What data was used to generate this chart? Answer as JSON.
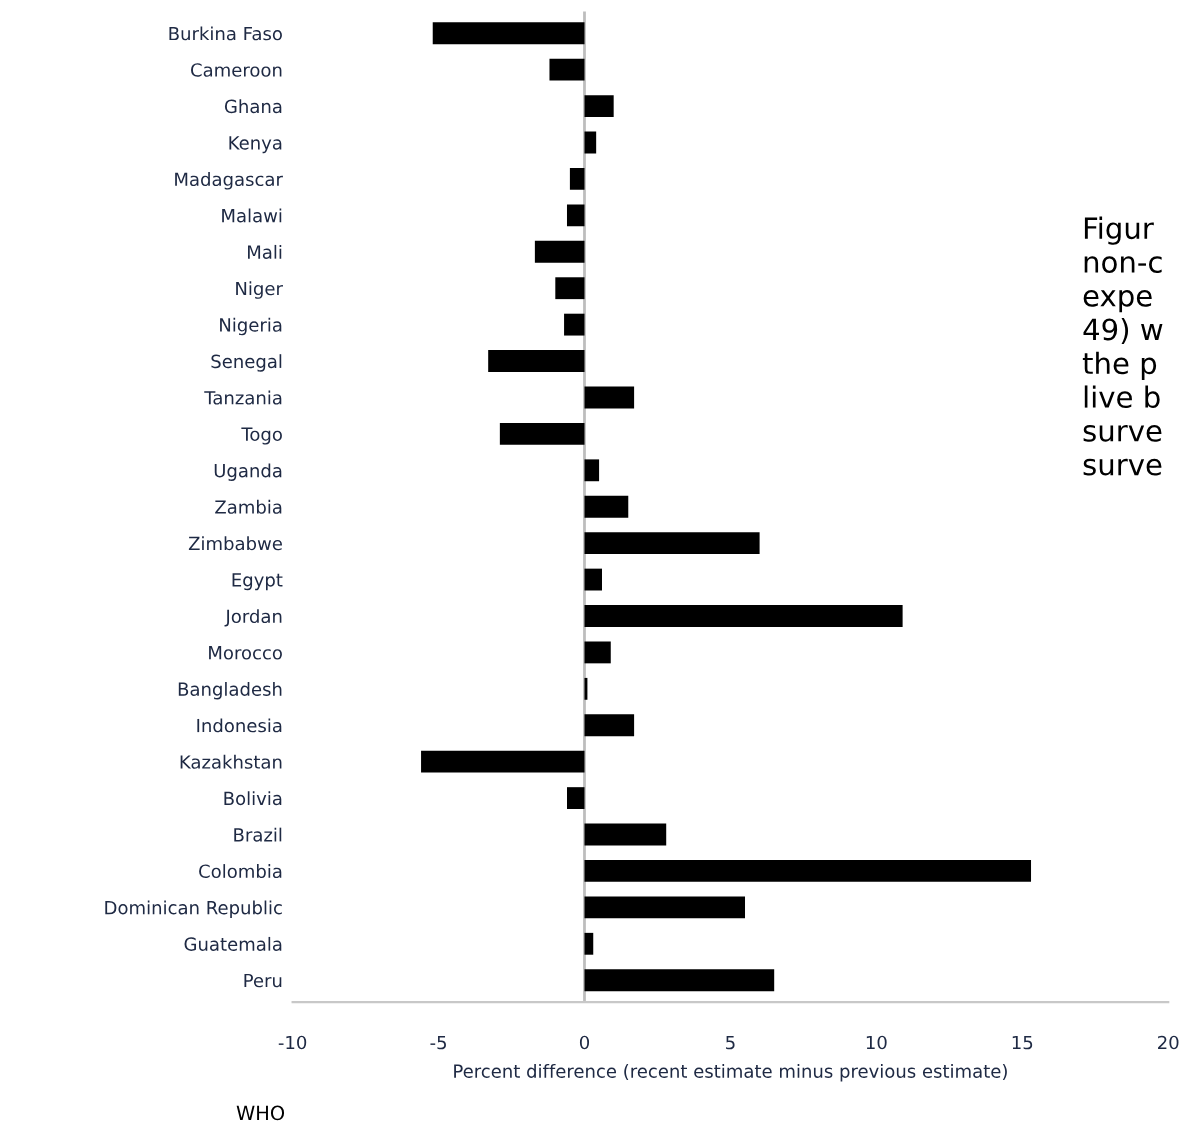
{
  "chart_data": {
    "type": "bar",
    "orientation": "horizontal",
    "categories": [
      "Burkina Faso",
      "Cameroon",
      "Ghana",
      "Kenya",
      "Madagascar",
      "Malawi",
      "Mali",
      "Niger",
      "Nigeria",
      "Senegal",
      "Tanzania",
      "Togo",
      "Uganda",
      "Zambia",
      "Zimbabwe",
      "Egypt",
      "Jordan",
      "Morocco",
      "Bangladesh",
      "Indonesia",
      "Kazakhstan",
      "Bolivia",
      "Brazil",
      "Colombia",
      "Dominican Republic",
      "Guatemala",
      "Peru"
    ],
    "values": [
      -5.2,
      -1.2,
      1.0,
      0.4,
      -0.5,
      -0.6,
      -1.7,
      -1.0,
      -0.7,
      -3.3,
      1.7,
      -2.9,
      0.5,
      1.5,
      6.0,
      0.6,
      10.9,
      0.9,
      0.1,
      1.7,
      -5.6,
      -0.6,
      2.8,
      15.3,
      5.5,
      0.3,
      6.5
    ],
    "color": "#000000",
    "xlim": [
      -10,
      20
    ],
    "xticks": [
      -10,
      -5,
      0,
      5,
      10,
      15,
      20
    ],
    "xlabel": "Percent difference (recent estimate minus previous estimate)",
    "annotations": [
      "Figur\nnon-c\nexpe\n49) w\nthe p\nlive b\nsurve\nsurve",
      "WHO"
    ],
    "ref_lines": [
      {
        "axis": "x",
        "value": 0,
        "color": "#bdbdbd"
      }
    ],
    "grid": false,
    "legend": false
  }
}
